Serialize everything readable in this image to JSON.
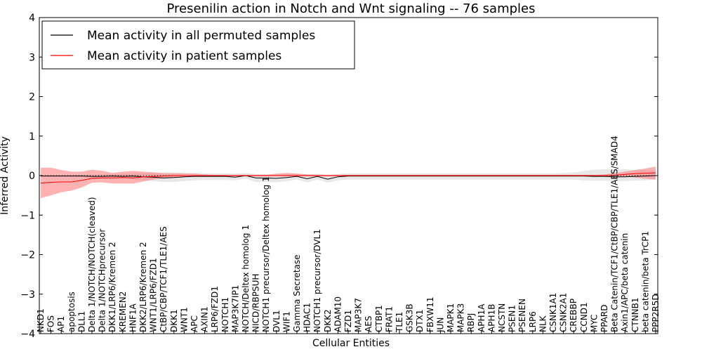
{
  "chart_data": {
    "type": "line",
    "title": "Presenilin action in Notch and Wnt signaling -- 76 samples",
    "xlabel": "Cellular Entities",
    "ylabel": "Inferred Activity",
    "ylim": [
      -4,
      4
    ],
    "yticks": [
      -4,
      -3,
      -2,
      -1,
      0,
      1,
      2,
      3,
      4
    ],
    "ytick_labels": [
      "−4",
      "−3",
      "−2",
      "−1",
      "0",
      "1",
      "2",
      "3",
      "4"
    ],
    "grid": false,
    "legend_position": "top-left",
    "categories": [
      "NKD1",
      "FOS",
      "AP1",
      "apoptosis",
      "DLL1",
      "Delta 1/NOTCH/NOTCH(cleaved)",
      "Delta 1/NOTCHprecursor",
      "DKK1/LRP6/Kremen 2",
      "KREMEN2",
      "HNF1A",
      "DKK2/LRP6/Kremen 2",
      "WNT1/LRP6/FZD1",
      "CtBP/CBP/TCF1/TLE1/AES",
      "DKK1",
      "WNT1",
      "APC",
      "AXIN1",
      "LRP6/FZD1",
      "NOTCH1",
      "MAP3K7IP1",
      "NOTCH/Deltex homolog 1",
      "NICD/RBPSUH",
      "NOTCH1 precursor/Deltex homolog 1",
      "DVL1",
      "WIF1",
      "Gamma Secretase",
      "HDAC1",
      "NOTCH1 precursor/DVL1",
      "DKK2",
      "ADAM10",
      "FZD1",
      "MAP3K7",
      "AES",
      "CTBP1",
      "FRAT1",
      "TLE1",
      "GSK3B",
      "DTX1",
      "FBXW11",
      "JUN",
      "MAPK1",
      "MAPK3",
      "RBPJ",
      "APH1A",
      "APH1B",
      "NCSTN",
      "PSEN1",
      "PSENEN",
      "LRP6",
      "NLK",
      "CSNK1A1",
      "CSNK2A1",
      "CREBBP",
      "CCND1",
      "MYC",
      "PPARD",
      "Beta Catenin/TCF1/CtBP/CBP/TLE1/AES/SMAD4",
      "Axin1/APC/beta catenin",
      "CTNNB1",
      "beta catenin/beta TrCP1",
      "PPP2R5D"
    ],
    "series": [
      {
        "name": "Mean activity in all permuted samples",
        "color": "#000000",
        "values": [
          -0.01,
          -0.01,
          -0.01,
          -0.01,
          -0.01,
          -0.02,
          -0.02,
          -0.01,
          -0.02,
          -0.01,
          -0.03,
          -0.04,
          -0.06,
          -0.05,
          -0.03,
          -0.02,
          -0.02,
          -0.02,
          -0.02,
          -0.04,
          0.0,
          -0.06,
          -0.06,
          -0.07,
          -0.05,
          -0.02,
          -0.08,
          -0.02,
          -0.09,
          -0.03,
          -0.01,
          -0.01,
          -0.01,
          -0.01,
          -0.01,
          -0.01,
          -0.01,
          -0.01,
          -0.01,
          -0.01,
          -0.01,
          -0.01,
          -0.01,
          -0.01,
          -0.01,
          -0.01,
          -0.01,
          -0.01,
          -0.01,
          -0.01,
          -0.01,
          -0.01,
          -0.01,
          -0.01,
          -0.02,
          -0.02,
          -0.03,
          -0.03,
          -0.02,
          -0.01,
          0.0
        ],
        "lower": [
          -0.03,
          -0.03,
          -0.03,
          -0.03,
          -0.04,
          -0.05,
          -0.06,
          -0.06,
          -0.07,
          -0.08,
          -0.12,
          -0.14,
          -0.16,
          -0.16,
          -0.14,
          -0.12,
          -0.11,
          -0.11,
          -0.11,
          -0.12,
          -0.08,
          -0.16,
          -0.16,
          -0.17,
          -0.14,
          -0.1,
          -0.17,
          -0.1,
          -0.18,
          -0.12,
          -0.1,
          -0.1,
          -0.1,
          -0.1,
          -0.1,
          -0.1,
          -0.1,
          -0.1,
          -0.1,
          -0.1,
          -0.1,
          -0.1,
          -0.1,
          -0.1,
          -0.1,
          -0.1,
          -0.1,
          -0.1,
          -0.1,
          -0.1,
          -0.1,
          -0.1,
          -0.1,
          -0.12,
          -0.13,
          -0.13,
          -0.14,
          -0.14,
          -0.13,
          -0.12,
          -0.1
        ],
        "upper": [
          0.01,
          0.01,
          0.01,
          0.01,
          0.02,
          0.02,
          0.03,
          0.04,
          0.05,
          0.06,
          0.07,
          0.08,
          0.08,
          0.08,
          0.08,
          0.07,
          0.06,
          0.06,
          0.06,
          0.05,
          0.07,
          0.04,
          0.03,
          0.03,
          0.04,
          0.05,
          0.02,
          0.05,
          0.01,
          0.04,
          0.06,
          0.06,
          0.06,
          0.06,
          0.06,
          0.06,
          0.06,
          0.06,
          0.06,
          0.06,
          0.06,
          0.06,
          0.06,
          0.06,
          0.06,
          0.06,
          0.06,
          0.06,
          0.06,
          0.06,
          0.06,
          0.07,
          0.08,
          0.12,
          0.15,
          0.16,
          0.16,
          0.16,
          0.15,
          0.14,
          0.12
        ]
      },
      {
        "name": "Mean activity in patient samples",
        "color": "#ff0000",
        "fill": "#ff6666",
        "values": [
          -0.19,
          -0.17,
          -0.16,
          -0.16,
          -0.12,
          -0.07,
          -0.06,
          -0.06,
          -0.05,
          -0.06,
          -0.03,
          -0.02,
          -0.01,
          0.0,
          0.0,
          0.0,
          0.0,
          0.0,
          0.0,
          0.0,
          0.0,
          0.0,
          0.0,
          0.0,
          0.0,
          0.0,
          0.0,
          0.0,
          0.0,
          0.0,
          0.0,
          0.0,
          0.0,
          0.0,
          0.0,
          0.0,
          0.0,
          0.0,
          0.0,
          0.0,
          0.0,
          0.0,
          0.0,
          0.0,
          0.0,
          0.0,
          0.0,
          0.0,
          0.0,
          0.0,
          0.0,
          0.0,
          0.0,
          0.0,
          0.0,
          0.0,
          0.01,
          0.03,
          0.05,
          0.06,
          0.07
        ],
        "lower": [
          -0.57,
          -0.5,
          -0.42,
          -0.38,
          -0.3,
          -0.18,
          -0.17,
          -0.2,
          -0.2,
          -0.2,
          -0.15,
          -0.1,
          -0.06,
          -0.04,
          -0.03,
          -0.02,
          -0.02,
          -0.02,
          -0.02,
          -0.02,
          -0.02,
          -0.02,
          -0.02,
          -0.02,
          -0.02,
          -0.02,
          -0.02,
          -0.02,
          -0.02,
          -0.02,
          -0.02,
          -0.02,
          -0.02,
          -0.02,
          -0.02,
          -0.02,
          -0.02,
          -0.02,
          -0.02,
          -0.02,
          -0.02,
          -0.02,
          -0.02,
          -0.02,
          -0.02,
          -0.02,
          -0.02,
          -0.02,
          -0.02,
          -0.02,
          -0.02,
          -0.02,
          -0.02,
          -0.02,
          -0.02,
          -0.02,
          -0.02,
          -0.02,
          -0.05,
          -0.08,
          -0.1
        ],
        "upper": [
          0.2,
          0.2,
          0.14,
          0.1,
          0.1,
          0.15,
          0.12,
          0.07,
          0.1,
          0.12,
          0.1,
          0.08,
          0.06,
          0.06,
          0.05,
          0.05,
          0.03,
          0.02,
          0.02,
          0.02,
          0.02,
          0.02,
          0.02,
          0.05,
          0.07,
          0.05,
          0.03,
          0.02,
          0.02,
          0.02,
          0.02,
          0.02,
          0.02,
          0.02,
          0.02,
          0.02,
          0.02,
          0.02,
          0.02,
          0.02,
          0.02,
          0.02,
          0.02,
          0.02,
          0.02,
          0.02,
          0.02,
          0.02,
          0.02,
          0.02,
          0.02,
          0.02,
          0.02,
          0.02,
          0.02,
          0.03,
          0.06,
          0.1,
          0.14,
          0.18,
          0.23
        ]
      }
    ],
    "reference_line": {
      "y": 0,
      "style": "dotted",
      "color": "#000000"
    }
  }
}
